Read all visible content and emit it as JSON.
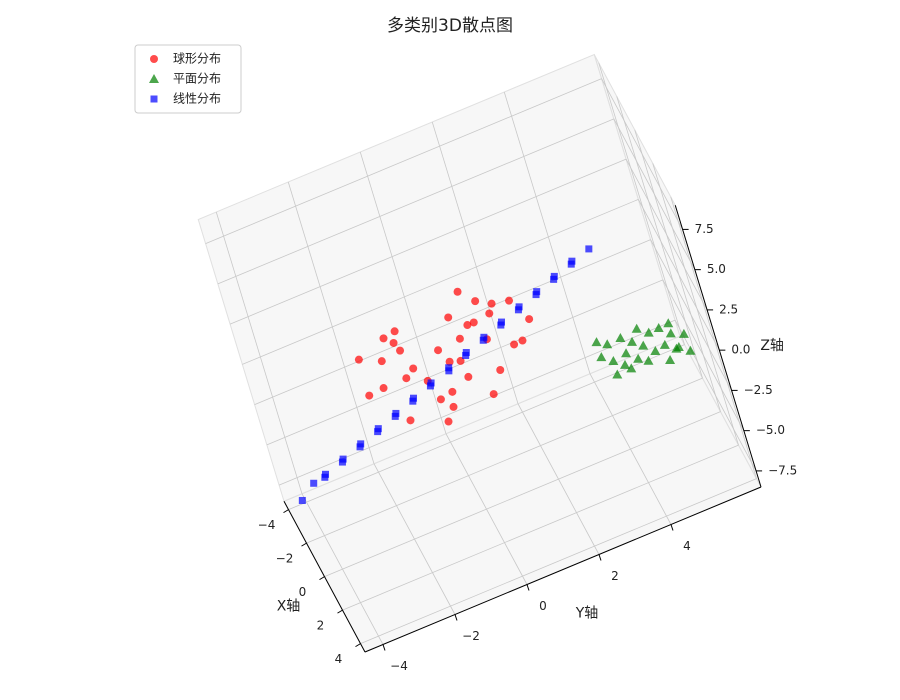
{
  "chart_data": {
    "type": "scatter3d",
    "title": "多类别3D散点图",
    "xlabel": "X轴",
    "ylabel": "Y轴",
    "zlabel": "Z轴",
    "xlim": [
      -4.5,
      4.5
    ],
    "ylim": [
      -4.5,
      6.5
    ],
    "zlim": [
      -8.5,
      9
    ],
    "xticks": [
      {
        "value": -4,
        "label": "−4"
      },
      {
        "value": -2,
        "label": "−2"
      },
      0,
      2,
      4
    ],
    "yticks": [
      {
        "value": -4,
        "label": "−4"
      },
      {
        "value": -2,
        "label": "−2"
      },
      0,
      2,
      4
    ],
    "zticks": [
      {
        "value": -7.5,
        "label": "−7.5"
      },
      {
        "value": -5,
        "label": "−5.0"
      },
      {
        "value": -2.5,
        "label": "−2.5"
      },
      {
        "value": 0,
        "label": "0.0"
      },
      {
        "value": 2.5,
        "label": "2.5"
      },
      {
        "value": 5,
        "label": "5.0"
      },
      {
        "value": 7.5,
        "label": "7.5"
      }
    ],
    "grid": true,
    "legend": "upper left",
    "series": [
      {
        "name": "球形分布",
        "color": "#ff0000",
        "marker": "o",
        "x": [
          0.5,
          -1.2,
          1.8,
          -0.3,
          0.9,
          -2.1,
          1.1,
          -0.8,
          0.2,
          2.3,
          -1.5,
          0.7,
          -0.4,
          1.5,
          -1.9,
          0.0,
          1.2,
          -0.6,
          2.0,
          -1.1,
          0.4,
          -2.4,
          0.8,
          -0.2,
          1.6,
          -1.3,
          0.1,
          2.5,
          -0.9,
          0.6,
          -1.7,
          1.0,
          -0.5,
          0.3,
          1.9
        ],
        "y": [
          -0.8,
          1.4,
          0.3,
          -1.6,
          1.0,
          0.2,
          -1.1,
          0.7,
          2.1,
          -0.5,
          -0.9,
          1.6,
          -2.0,
          0.4,
          1.1,
          -0.3,
          1.8,
          -1.2,
          -1.4,
          0.6,
          0.0,
          -0.7,
          2.4,
          1.3,
          -0.2,
          -1.9,
          0.9,
          0.8,
          -0.4,
          -1.0,
          1.7,
          0.1,
          2.2,
          -1.5,
          1.2
        ],
        "z": [
          1.5,
          -0.5,
          2.3,
          0.2,
          3.1,
          -1.0,
          1.8,
          0.6,
          2.7,
          -0.2,
          1.1,
          3.5,
          0.0,
          0.9,
          2.0,
          -1.4,
          1.3,
          2.6,
          0.4,
          1.7,
          -0.8,
          0.7,
          1.9,
          3.0,
          -0.3,
          1.2,
          2.2,
          0.5,
          -1.1,
          2.9,
          0.3,
          1.6,
          -0.6,
          2.4,
          1.0
        ]
      },
      {
        "name": "平面分布",
        "color": "#008000",
        "marker": "^",
        "x": [
          -1.4,
          -0.9,
          -0.3,
          0.4,
          1.0,
          1.4,
          -1.2,
          -0.6,
          0.1,
          0.7,
          1.3,
          -1.5,
          -0.8,
          -0.1,
          0.5,
          1.1,
          -1.0,
          -0.4,
          0.3,
          0.9,
          1.5,
          -1.3,
          -0.2,
          0.6,
          1.2
        ],
        "y": [
          4.1,
          4.3,
          4.0,
          4.2,
          4.4,
          4.1,
          4.7,
          4.9,
          4.6,
          4.8,
          4.5,
          5.2,
          5.4,
          5.1,
          5.3,
          5.0,
          5.7,
          5.9,
          5.6,
          5.8,
          5.5,
          6.0,
          6.2,
          5.9,
          6.1
        ],
        "z": [
          -3.4,
          -3.2,
          -3.1,
          -2.8,
          -2.6,
          -2.5,
          -3.5,
          -3.3,
          -3.0,
          -2.9,
          -2.6,
          -3.7,
          -3.4,
          -3.2,
          -3.1,
          -2.8,
          -3.6,
          -3.5,
          -3.2,
          -3.0,
          -2.8,
          -3.9,
          -3.6,
          -3.3,
          -3.1
        ]
      },
      {
        "name": "线性分布",
        "color": "#0000ff",
        "marker": "s",
        "x": [
          -3.9,
          -3.8,
          -3.6,
          -3.2,
          -3.1,
          -2.7,
          -2.6,
          -2.2,
          -2.1,
          -1.7,
          -1.6,
          -1.2,
          -1.1,
          -0.7,
          -0.6,
          -0.2,
          0.1,
          0.3,
          0.4,
          0.8,
          0.9,
          1.3,
          1.4,
          1.8,
          1.9,
          2.3,
          2.4,
          2.8,
          2.9,
          3.3,
          3.4,
          3.8,
          3.9
        ],
        "y": [
          -4.1,
          -3.7,
          -3.4,
          -3.4,
          -2.9,
          -2.9,
          -2.4,
          -2.4,
          -1.9,
          -1.9,
          -1.4,
          -1.4,
          -0.9,
          -0.9,
          -0.4,
          -0.4,
          0.1,
          0.1,
          0.6,
          0.6,
          1.1,
          1.1,
          1.6,
          1.6,
          2.1,
          2.1,
          2.6,
          2.6,
          3.1,
          3.1,
          3.6,
          3.6,
          4.1
        ],
        "z": [
          -8.2,
          -7.4,
          -7.1,
          -6.5,
          -6.1,
          -5.5,
          -5.1,
          -4.5,
          -4.1,
          -3.5,
          -3.1,
          -2.5,
          -2.1,
          -1.5,
          -1.1,
          -0.5,
          0.1,
          0.5,
          0.9,
          1.5,
          1.9,
          2.5,
          2.9,
          3.5,
          3.9,
          4.5,
          4.9,
          5.5,
          5.9,
          6.5,
          6.9,
          7.5,
          7.9
        ]
      }
    ]
  }
}
